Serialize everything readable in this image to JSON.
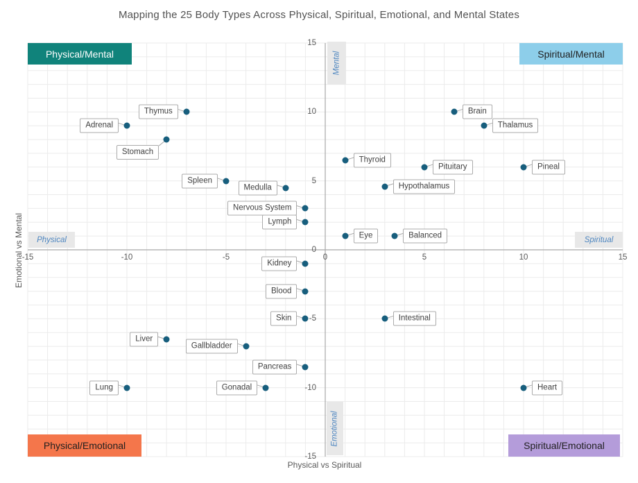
{
  "chart_data": {
    "type": "scatter",
    "title": "Mapping the 25 Body Types Across Physical, Spiritual, Emotional, and Mental States",
    "xlabel": "Physical vs Spiritual",
    "ylabel": "Emotional vs Mental",
    "xlim": [
      -15,
      15
    ],
    "ylim": [
      -15,
      15
    ],
    "ticks": [
      -15,
      -10,
      -5,
      0,
      5,
      10,
      15
    ],
    "grid": true,
    "legend": false,
    "points": [
      {
        "label": "Thymus",
        "x": -7,
        "y": 10,
        "side": "left"
      },
      {
        "label": "Adrenal",
        "x": -10,
        "y": 9,
        "side": "left"
      },
      {
        "label": "Stomach",
        "x": -8,
        "y": 8,
        "side": "left-below"
      },
      {
        "label": "Spleen",
        "x": -5,
        "y": 5,
        "side": "left"
      },
      {
        "label": "Medulla",
        "x": -2,
        "y": 4.5,
        "side": "left"
      },
      {
        "label": "Nervous System",
        "x": -1,
        "y": 3,
        "side": "left"
      },
      {
        "label": "Lymph",
        "x": -1,
        "y": 2,
        "side": "left"
      },
      {
        "label": "Kidney",
        "x": -1,
        "y": -1,
        "side": "left"
      },
      {
        "label": "Blood",
        "x": -1,
        "y": -3,
        "side": "left"
      },
      {
        "label": "Skin",
        "x": -1,
        "y": -5,
        "side": "left"
      },
      {
        "label": "Liver",
        "x": -8,
        "y": -6.5,
        "side": "left"
      },
      {
        "label": "Gallbladder",
        "x": -4,
        "y": -7,
        "side": "left"
      },
      {
        "label": "Pancreas",
        "x": -1,
        "y": -8.5,
        "side": "left"
      },
      {
        "label": "Lung",
        "x": -10,
        "y": -10,
        "side": "left"
      },
      {
        "label": "Gonadal",
        "x": -3,
        "y": -10,
        "side": "left"
      },
      {
        "label": "Brain",
        "x": 6.5,
        "y": 10,
        "side": "right"
      },
      {
        "label": "Thalamus",
        "x": 8,
        "y": 9,
        "side": "right"
      },
      {
        "label": "Thyroid",
        "x": 1,
        "y": 6.5,
        "side": "right"
      },
      {
        "label": "Pituitary",
        "x": 5,
        "y": 6,
        "side": "right"
      },
      {
        "label": "Pineal",
        "x": 10,
        "y": 6,
        "side": "right"
      },
      {
        "label": "Hypothalamus",
        "x": 3,
        "y": 4.6,
        "side": "right"
      },
      {
        "label": "Eye",
        "x": 1,
        "y": 1,
        "side": "right"
      },
      {
        "label": "Balanced",
        "x": 3.5,
        "y": 1,
        "side": "right"
      },
      {
        "label": "Intestinal",
        "x": 3,
        "y": -5,
        "side": "right"
      },
      {
        "label": "Heart",
        "x": 10,
        "y": -10,
        "side": "right"
      }
    ],
    "quadrant_labels": {
      "top_left": "Physical/Mental",
      "top_right": "Spiritual/Mental",
      "bottom_left": "Physical/Emotional",
      "bottom_right": "Spiritual/Emotional"
    },
    "axis_tags": {
      "top": "Mental",
      "bottom": "Emotional",
      "left": "Physical",
      "right": "Spiritual"
    }
  },
  "colors": {
    "point": "#175E7D",
    "quad-pm": "#10837B",
    "quad-sm": "#8DCEEA",
    "quad-pe": "#F4764B",
    "quad-se": "#B49CDA",
    "axis-tag-text": "#4E86C0",
    "axis-tag-bg": "#E8E8E8",
    "grid": "#EBEBEB",
    "axis-line": "#A8A8A8",
    "leader": "#A8A8A8",
    "text-muted": "#595959",
    "label-border": "#ABABAB",
    "label-text": "#3F3F3F",
    "title-text": "#515151"
  }
}
